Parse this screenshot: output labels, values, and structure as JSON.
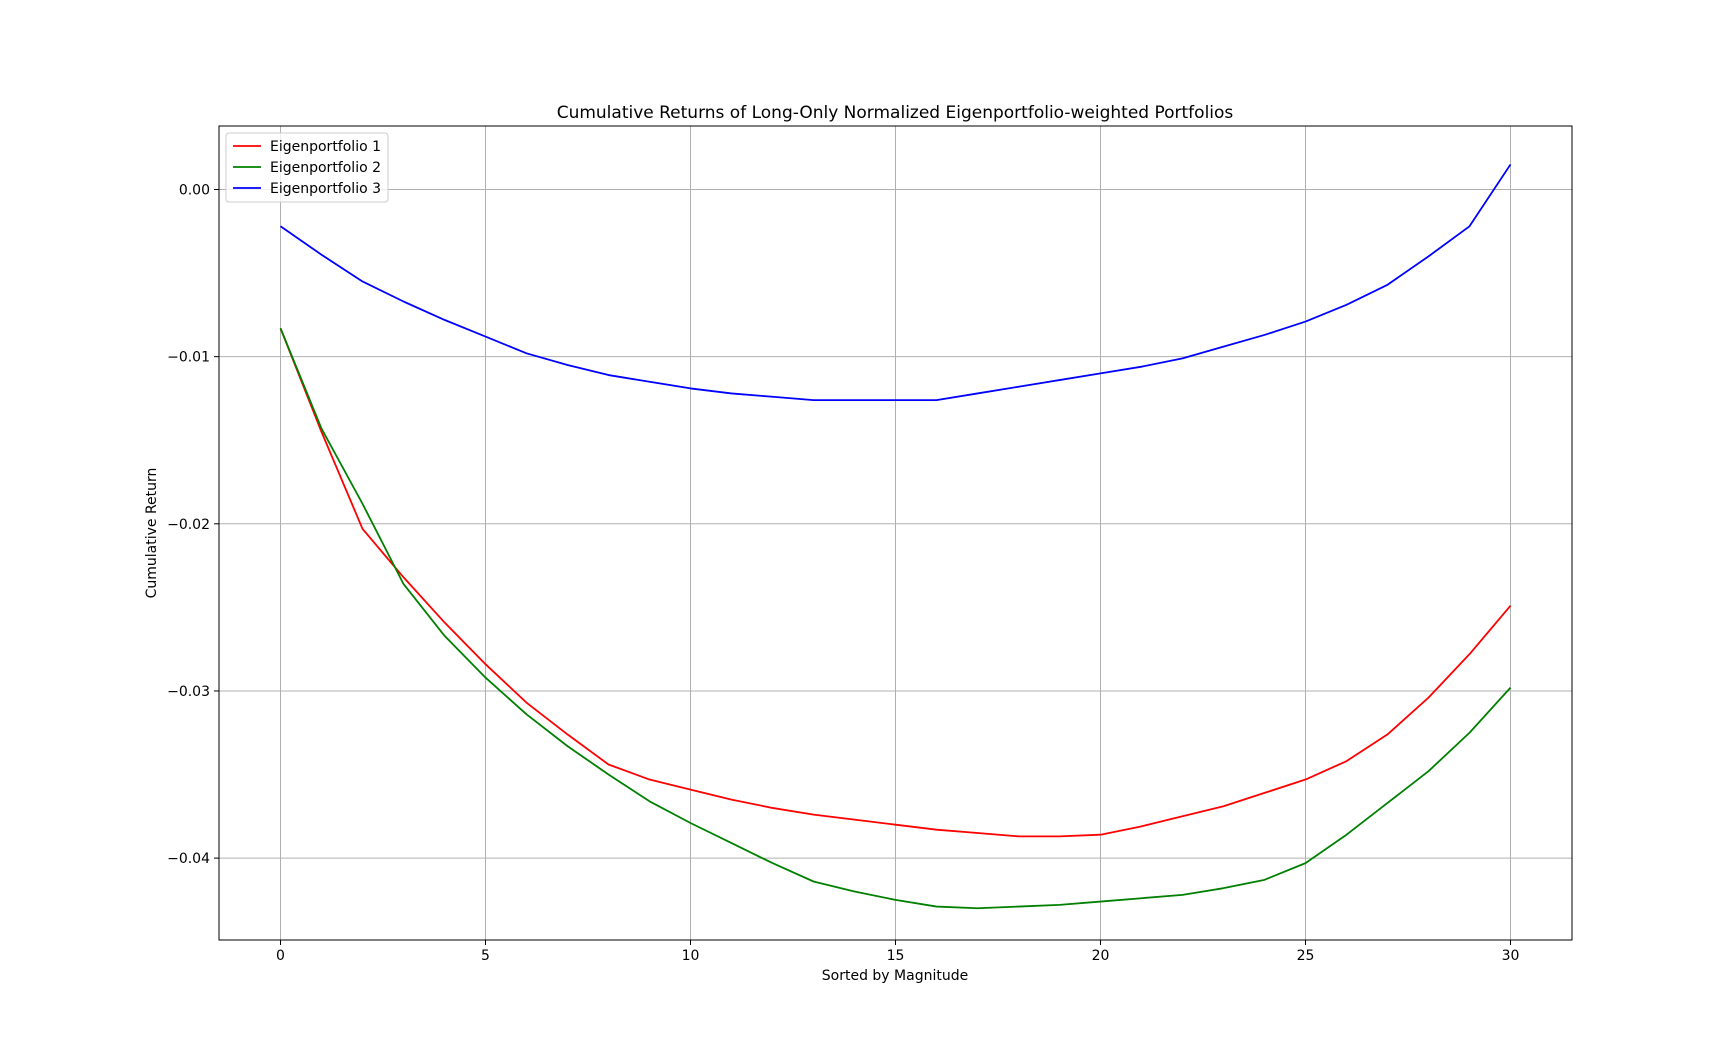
{
  "chart_data": {
    "type": "line",
    "title": "Cumulative Returns of Long-Only Normalized Eigenportfolio-weighted Portfolios",
    "xlabel": "Sorted by Magnitude",
    "ylabel": "Cumulative Return",
    "xlim": [
      -1.5,
      31.5
    ],
    "ylim": [
      -0.0449,
      0.0038
    ],
    "xticks": [
      0,
      5,
      10,
      15,
      20,
      25,
      30
    ],
    "xtick_labels": [
      "0",
      "5",
      "10",
      "15",
      "20",
      "25",
      "30"
    ],
    "yticks": [
      0.0,
      -0.01,
      -0.02,
      -0.03,
      -0.04
    ],
    "ytick_labels": [
      "0.00",
      "−0.01",
      "−0.02",
      "−0.03",
      "−0.04"
    ],
    "grid": true,
    "legend_position": "top-left",
    "x": [
      0,
      1,
      2,
      3,
      4,
      5,
      6,
      7,
      8,
      9,
      10,
      11,
      12,
      13,
      14,
      15,
      16,
      17,
      18,
      19,
      20,
      21,
      22,
      23,
      24,
      25,
      26,
      27,
      28,
      29,
      30
    ],
    "series": [
      {
        "name": "Eigenportfolio 1",
        "color": "#ff0000",
        "values": [
          -0.0083,
          -0.0145,
          -0.0203,
          -0.0232,
          -0.0259,
          -0.0284,
          -0.0307,
          -0.0326,
          -0.0344,
          -0.0353,
          -0.0359,
          -0.0365,
          -0.037,
          -0.0374,
          -0.0377,
          -0.038,
          -0.0383,
          -0.0385,
          -0.0387,
          -0.0387,
          -0.0386,
          -0.0381,
          -0.0375,
          -0.0369,
          -0.0361,
          -0.0353,
          -0.0342,
          -0.0326,
          -0.0304,
          -0.0278,
          -0.0249
        ]
      },
      {
        "name": "Eigenportfolio 2",
        "color": "#008000",
        "values": [
          -0.0083,
          -0.0143,
          -0.0188,
          -0.0236,
          -0.0267,
          -0.0292,
          -0.0314,
          -0.0333,
          -0.035,
          -0.0366,
          -0.0379,
          -0.0391,
          -0.0403,
          -0.0414,
          -0.042,
          -0.0425,
          -0.0429,
          -0.043,
          -0.0429,
          -0.0428,
          -0.0426,
          -0.0424,
          -0.0422,
          -0.0418,
          -0.0413,
          -0.0403,
          -0.0386,
          -0.0367,
          -0.0348,
          -0.0325,
          -0.0298
        ]
      },
      {
        "name": "Eigenportfolio 3",
        "color": "#0000ff",
        "values": [
          -0.0022,
          -0.0039,
          -0.0055,
          -0.0067,
          -0.0078,
          -0.0088,
          -0.0098,
          -0.0105,
          -0.0111,
          -0.0115,
          -0.0119,
          -0.0122,
          -0.0124,
          -0.0126,
          -0.0126,
          -0.0126,
          -0.0126,
          -0.0122,
          -0.0118,
          -0.0114,
          -0.011,
          -0.0106,
          -0.0101,
          -0.0094,
          -0.0087,
          -0.0079,
          -0.0069,
          -0.0057,
          -0.004,
          -0.0022,
          0.0015
        ]
      }
    ]
  }
}
